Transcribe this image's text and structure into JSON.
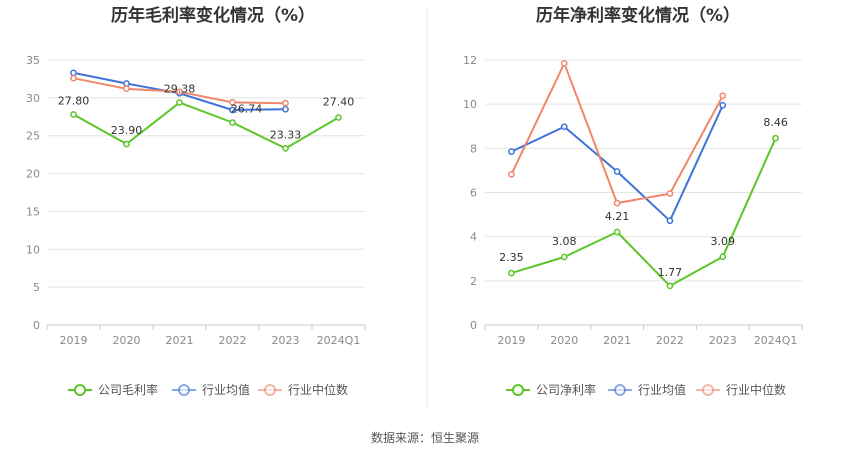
{
  "source_text": "数据来源：恒生聚源",
  "colors": {
    "company": "#5cc528",
    "industry_avg": "#3f73d9",
    "industry_median": "#f0876a",
    "grid": "#e4e4e4",
    "axis": "#c8c8c8",
    "divider": "#e8e8e8"
  },
  "chart_data": [
    {
      "type": "line",
      "title": "历年毛利率变化情况（%）",
      "categories": [
        "2019",
        "2020",
        "2021",
        "2022",
        "2023",
        "2024Q1"
      ],
      "ylim": [
        0,
        35
      ],
      "yticks": [
        0,
        5,
        10,
        15,
        20,
        25,
        30,
        35
      ],
      "grid": true,
      "legend_position": "bottom",
      "series": [
        {
          "name": "公司毛利率",
          "color_key": "company",
          "values": [
            27.8,
            23.9,
            29.38,
            26.74,
            23.33,
            27.4
          ],
          "labels": [
            "27.80",
            "23.90",
            "29.38",
            "26.74",
            "23.33",
            "27.40"
          ]
        },
        {
          "name": "行业均值",
          "color_key": "industry_avg",
          "values": [
            33.3,
            31.9,
            30.6,
            28.4,
            28.5,
            null
          ]
        },
        {
          "name": "行业中位数",
          "color_key": "industry_median",
          "values": [
            32.6,
            31.2,
            30.8,
            29.4,
            29.3,
            null
          ]
        }
      ]
    },
    {
      "type": "line",
      "title": "历年净利率变化情况（%）",
      "categories": [
        "2019",
        "2020",
        "2021",
        "2022",
        "2023",
        "2024Q1"
      ],
      "ylim": [
        0,
        12
      ],
      "yticks": [
        0,
        2,
        4,
        6,
        8,
        10,
        12
      ],
      "grid": true,
      "legend_position": "bottom",
      "series": [
        {
          "name": "公司净利率",
          "color_key": "company",
          "values": [
            2.35,
            3.08,
            4.21,
            1.77,
            3.09,
            8.46
          ],
          "labels": [
            "2.35",
            "3.08",
            "4.21",
            "1.77",
            "3.09",
            "8.46"
          ]
        },
        {
          "name": "行业均值",
          "color_key": "industry_avg",
          "values": [
            7.85,
            8.98,
            6.95,
            4.72,
            9.95,
            null
          ]
        },
        {
          "name": "行业中位数",
          "color_key": "industry_median",
          "values": [
            6.82,
            11.85,
            5.52,
            5.95,
            10.38,
            null
          ]
        }
      ]
    }
  ]
}
